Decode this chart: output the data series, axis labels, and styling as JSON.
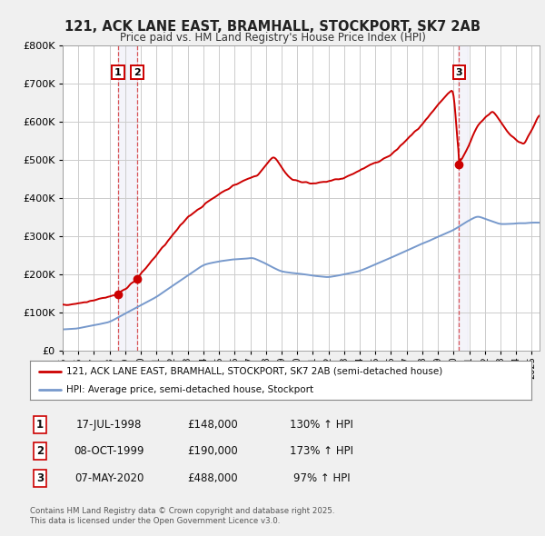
{
  "title": "121, ACK LANE EAST, BRAMHALL, STOCKPORT, SK7 2AB",
  "subtitle": "Price paid vs. HM Land Registry's House Price Index (HPI)",
  "bg_color": "#f0f0f0",
  "plot_bg_color": "#ffffff",
  "grid_color": "#cccccc",
  "red_line_color": "#cc0000",
  "blue_line_color": "#7799cc",
  "sale1": {
    "label": "1",
    "date": "17-JUL-1998",
    "price": 148000,
    "hpi_pct": "130% ↑ HPI",
    "year": 1998.54
  },
  "sale2": {
    "label": "2",
    "date": "08-OCT-1999",
    "price": 190000,
    "hpi_pct": "173% ↑ HPI",
    "year": 1999.77
  },
  "sale3": {
    "label": "3",
    "date": "07-MAY-2020",
    "price": 488000,
    "hpi_pct": "97% ↑ HPI",
    "year": 2020.35
  },
  "legend_line1": "121, ACK LANE EAST, BRAMHALL, STOCKPORT, SK7 2AB (semi-detached house)",
  "legend_line2": "HPI: Average price, semi-detached house, Stockport",
  "footnote1": "Contains HM Land Registry data © Crown copyright and database right 2025.",
  "footnote2": "This data is licensed under the Open Government Licence v3.0.",
  "xmin": 1995,
  "xmax": 2025.5
}
